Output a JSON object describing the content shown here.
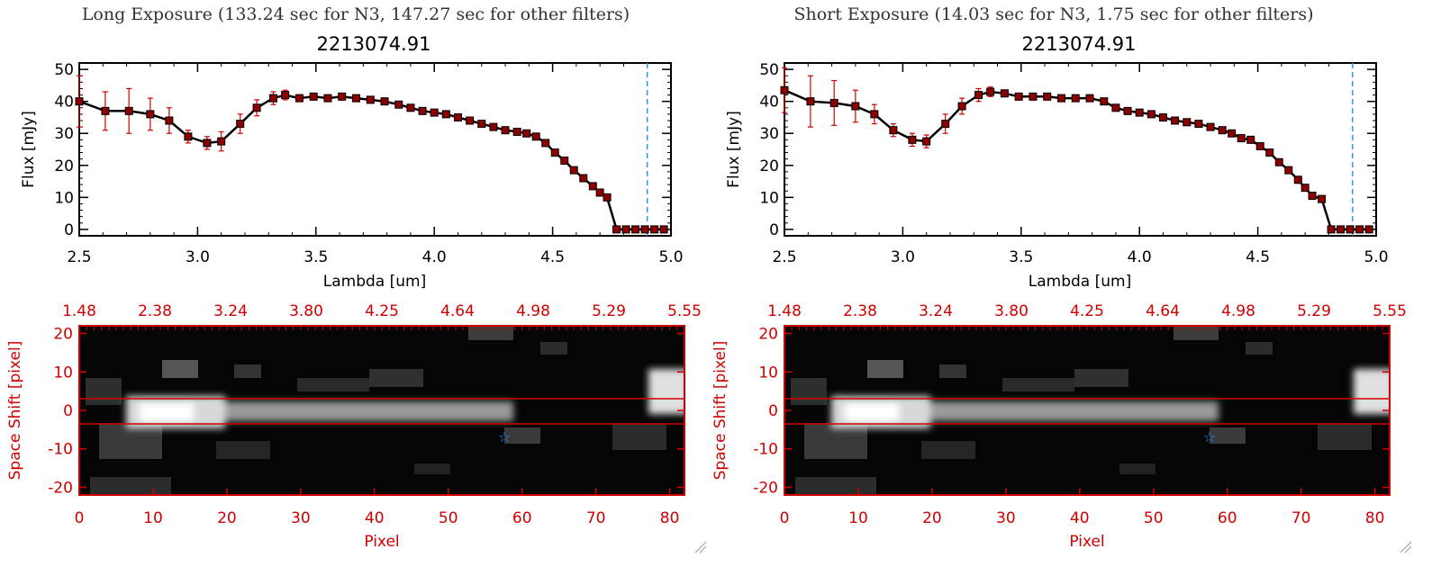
{
  "colors": {
    "spectrum_line": "#000000",
    "error_bar": "#d00000",
    "marker_fill": "#8b0000",
    "cutoff_line": "#2aa0e0",
    "image_frame": "#d00000",
    "star_marker": "#2a8cff"
  },
  "panels": [
    {
      "caption": "Long Exposure (133.24 sec for N3, 147.27 sec for other filters)",
      "title": "2213074.91",
      "spectrum_ylabel": "Flux [mJy]",
      "spectrum_xlabel": "Lambda [um]",
      "image_ylabel": "Space Shift [pixel]",
      "image_xlabel": "Pixel"
    },
    {
      "caption": "Short Exposure (14.03 sec for N3, 1.75 sec for other filters)",
      "title": "2213074.91",
      "spectrum_ylabel": "Flux [mJy]",
      "spectrum_xlabel": "Lambda [um]",
      "image_ylabel": "Space Shift [pixel]",
      "image_xlabel": "Pixel"
    }
  ],
  "chart_data": [
    {
      "type": "line",
      "panel": "long",
      "title": "2213074.91",
      "xlabel": "Lambda [um]",
      "ylabel": "Flux [mJy]",
      "xlim": [
        2.5,
        5.0
      ],
      "ylim": [
        -2,
        52
      ],
      "xticks": [
        "2.5",
        "3.0",
        "3.5",
        "4.0",
        "4.5",
        "5.0"
      ],
      "yticks": [
        "0",
        "10",
        "20",
        "30",
        "40",
        "50"
      ],
      "cutoff_x": 4.9,
      "x": [
        2.5,
        2.61,
        2.71,
        2.8,
        2.88,
        2.96,
        3.04,
        3.1,
        3.18,
        3.25,
        3.32,
        3.37,
        3.43,
        3.49,
        3.55,
        3.61,
        3.67,
        3.73,
        3.79,
        3.85,
        3.9,
        3.95,
        4.0,
        4.05,
        4.1,
        4.15,
        4.2,
        4.25,
        4.3,
        4.35,
        4.39,
        4.43,
        4.47,
        4.51,
        4.55,
        4.59,
        4.63,
        4.67,
        4.7,
        4.73,
        4.77,
        4.81,
        4.85,
        4.89,
        4.93,
        4.97
      ],
      "y": [
        40,
        37,
        37,
        36,
        34,
        29,
        27,
        27.5,
        33,
        38,
        41,
        42,
        41,
        41.5,
        41,
        41.5,
        41,
        40.5,
        40,
        39,
        38,
        37,
        36.5,
        36,
        35,
        34,
        33,
        32,
        31,
        30.5,
        30,
        29,
        27,
        24,
        21.5,
        18.5,
        16,
        13.5,
        11.5,
        10,
        0,
        0,
        0,
        0,
        0,
        0
      ],
      "yerr": [
        8,
        6,
        7,
        5,
        4,
        2,
        2,
        3,
        3,
        2.5,
        2,
        1.5,
        1,
        0.8,
        0.8,
        0.8,
        0.8,
        0.8,
        0.8,
        0.8,
        0.8,
        0.8,
        0.8,
        0.8,
        0.8,
        0.8,
        0.8,
        0.8,
        0.8,
        0.8,
        0.8,
        0.8,
        0.8,
        0.8,
        0.8,
        0.8,
        0.8,
        0.8,
        0.8,
        0.8,
        0,
        0,
        0,
        0,
        0,
        0
      ]
    },
    {
      "type": "heatmap",
      "panel": "long",
      "xlabel": "Pixel",
      "ylabel": "Space Shift [pixel]",
      "xlim": [
        0,
        82
      ],
      "ylim": [
        -22,
        22
      ],
      "xticks": [
        "0",
        "10",
        "20",
        "30",
        "40",
        "50",
        "60",
        "70",
        "80"
      ],
      "yticks": [
        "-20",
        "-10",
        "0",
        "10",
        "20"
      ],
      "top_axis_ticks": [
        "1.48",
        "2.38",
        "3.24",
        "3.80",
        "4.25",
        "4.64",
        "4.98",
        "5.29",
        "5.55"
      ],
      "extraction_window": [
        -3,
        3
      ],
      "star_marker": [
        57,
        -6
      ]
    },
    {
      "type": "line",
      "panel": "short",
      "title": "2213074.91",
      "xlabel": "Lambda [um]",
      "ylabel": "Flux [mJy]",
      "xlim": [
        2.5,
        5.0
      ],
      "ylim": [
        -2,
        52
      ],
      "xticks": [
        "2.5",
        "3.0",
        "3.5",
        "4.0",
        "4.5",
        "5.0"
      ],
      "yticks": [
        "0",
        "10",
        "20",
        "30",
        "40",
        "50"
      ],
      "cutoff_x": 4.9,
      "x": [
        2.5,
        2.61,
        2.71,
        2.8,
        2.88,
        2.96,
        3.04,
        3.1,
        3.18,
        3.25,
        3.32,
        3.37,
        3.43,
        3.49,
        3.55,
        3.61,
        3.67,
        3.73,
        3.79,
        3.85,
        3.9,
        3.95,
        4.0,
        4.05,
        4.1,
        4.15,
        4.2,
        4.25,
        4.3,
        4.35,
        4.39,
        4.43,
        4.47,
        4.51,
        4.55,
        4.59,
        4.63,
        4.67,
        4.7,
        4.73,
        4.77,
        4.81,
        4.85,
        4.89,
        4.93,
        4.97
      ],
      "y": [
        43.5,
        40,
        39.5,
        38.5,
        36,
        31,
        28,
        27.5,
        33,
        38.5,
        42,
        43,
        42.5,
        41.5,
        41.5,
        41.5,
        41,
        41,
        41,
        40,
        38,
        37,
        36.5,
        36,
        35,
        34,
        33.5,
        33,
        32,
        31,
        30,
        28.5,
        28,
        26,
        24,
        21,
        18.5,
        15.5,
        13,
        10.5,
        9.5,
        0,
        0,
        0,
        0,
        0
      ],
      "yerr": [
        7,
        8,
        7,
        5,
        3,
        2,
        2,
        2,
        3,
        2.5,
        2,
        1.5,
        1,
        0.8,
        0.8,
        0.8,
        0.8,
        0.8,
        0.8,
        0.8,
        0.8,
        0.8,
        0.8,
        0.8,
        0.8,
        0.8,
        0.8,
        0.8,
        0.8,
        0.8,
        0.8,
        0.8,
        0.8,
        0.8,
        0.8,
        0.8,
        0.8,
        0.8,
        0.8,
        0.8,
        0.8,
        0,
        0,
        0,
        0,
        0
      ]
    },
    {
      "type": "heatmap",
      "panel": "short",
      "xlabel": "Pixel",
      "ylabel": "Space Shift [pixel]",
      "xlim": [
        0,
        82
      ],
      "ylim": [
        -22,
        22
      ],
      "xticks": [
        "0",
        "10",
        "20",
        "30",
        "40",
        "50",
        "60",
        "70",
        "80"
      ],
      "yticks": [
        "-20",
        "-10",
        "0",
        "10",
        "20"
      ],
      "top_axis_ticks": [
        "1.48",
        "2.38",
        "3.24",
        "3.80",
        "4.25",
        "4.64",
        "4.98",
        "5.29",
        "5.55"
      ],
      "extraction_window": [
        -3,
        3
      ],
      "star_marker": [
        57,
        -6
      ]
    }
  ]
}
